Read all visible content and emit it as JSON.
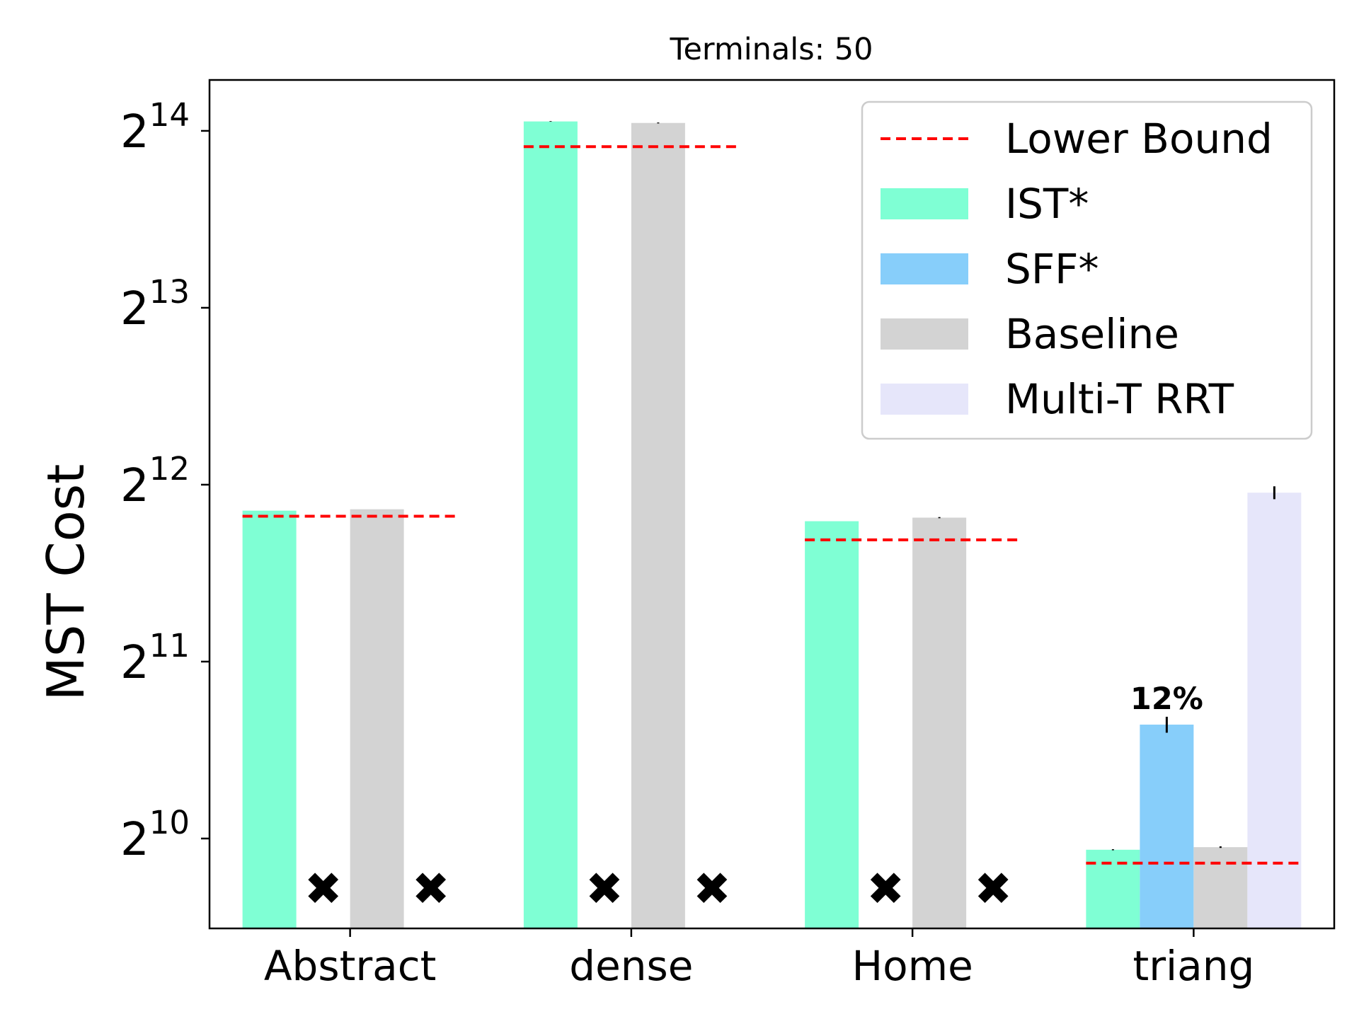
{
  "chart_data": {
    "type": "bar",
    "title": "Terminals: 50",
    "ylabel": "MST Cost",
    "xlabel": "",
    "yscale": "log2",
    "ylim": [
      720,
      20000
    ],
    "yticks": [
      {
        "value": 1024,
        "base": "2",
        "exp": "10"
      },
      {
        "value": 2048,
        "base": "2",
        "exp": "11"
      },
      {
        "value": 4096,
        "base": "2",
        "exp": "12"
      },
      {
        "value": 8192,
        "base": "2",
        "exp": "13"
      },
      {
        "value": 16384,
        "base": "2",
        "exp": "14"
      }
    ],
    "categories": [
      "Abstract",
      "dense",
      "Home",
      "triang"
    ],
    "series": [
      {
        "name": "IST*",
        "color": "#7fffd4",
        "values": [
          3700,
          17000,
          3550,
          980
        ]
      },
      {
        "name": "SFF*",
        "color": "#87cefa",
        "values": [
          null,
          null,
          null,
          1600
        ]
      },
      {
        "name": "Baseline",
        "color": "#d3d3d3",
        "values": [
          3720,
          16900,
          3600,
          990
        ]
      },
      {
        "name": "Multi-T RRT",
        "color": "#e6e6fa",
        "values": [
          null,
          null,
          null,
          3970
        ]
      }
    ],
    "error": [
      [
        0,
        20,
        0,
        2
      ],
      [
        null,
        null,
        null,
        50
      ],
      [
        0,
        30,
        8,
        3
      ],
      [
        null,
        null,
        null,
        100
      ]
    ],
    "lower_bound": {
      "name": "Lower Bound",
      "color": "#ff0000",
      "values": [
        3620,
        15400,
        3300,
        930
      ]
    },
    "failed_marker": "✖",
    "annotations": [
      {
        "category": "triang",
        "series": "SFF*",
        "text": "12%"
      }
    ],
    "legend": {
      "position": "top-right",
      "entries": [
        "Lower Bound",
        "IST*",
        "SFF*",
        "Baseline",
        "Multi-T RRT"
      ]
    },
    "grid": false
  }
}
